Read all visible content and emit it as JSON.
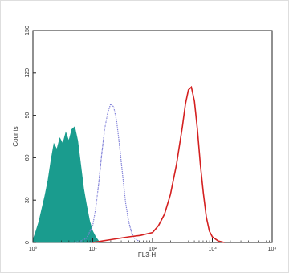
{
  "chart_data": {
    "type": "area",
    "title": "",
    "xlabel": "FL3-H",
    "ylabel": "Counts",
    "x_scale": "log",
    "xlim": [
      1,
      10000
    ],
    "ylim": [
      0,
      150
    ],
    "x_ticks": [
      "10⁰",
      "10¹",
      "10²",
      "10³",
      "10⁴"
    ],
    "y_ticks": [
      "0",
      "30",
      "60",
      "90",
      "120",
      "150"
    ],
    "legend": "none",
    "grid": false,
    "series": [
      {
        "style": "filled",
        "color": "#1a9c8e",
        "x": [
          1.0,
          1.12,
          1.26,
          1.41,
          1.58,
          1.78,
          2.0,
          2.24,
          2.51,
          2.82,
          3.16,
          3.55,
          3.98,
          4.47,
          5.01,
          5.62,
          6.31,
          7.08,
          7.94,
          8.91,
          10.0,
          11.2,
          12.6
        ],
        "y": [
          2,
          8,
          15,
          24,
          33,
          44,
          58,
          70,
          66,
          74,
          70,
          78,
          72,
          80,
          82,
          72,
          55,
          38,
          26,
          15,
          8,
          4,
          1
        ]
      },
      {
        "style": "dotted-line",
        "color": "#8080d8",
        "x": [
          5.0,
          6.3,
          7.9,
          10.0,
          11.2,
          12.6,
          14.1,
          15.8,
          17.8,
          20.0,
          22.4,
          25.1,
          28.2,
          31.6,
          35.5,
          39.8,
          44.7,
          50.1,
          63.1
        ],
        "y": [
          0,
          1,
          3,
          12,
          24,
          42,
          62,
          80,
          92,
          98,
          96,
          86,
          68,
          48,
          28,
          15,
          7,
          3,
          0
        ]
      },
      {
        "style": "solid-line",
        "color": "#d42020",
        "x": [
          10.0,
          20.0,
          40.0,
          63.1,
          79.4,
          100.0,
          125.9,
          158.5,
          199.5,
          251.2,
          316.2,
          354.8,
          398.1,
          446.7,
          501.2,
          562.3,
          631.0,
          707.9,
          794.3,
          891.3,
          1000.0,
          1258.9,
          1584.9
        ],
        "y": [
          0,
          2,
          4,
          5,
          6,
          7,
          12,
          20,
          34,
          55,
          82,
          98,
          108,
          110,
          100,
          80,
          55,
          35,
          18,
          8,
          4,
          1,
          0
        ]
      }
    ]
  }
}
